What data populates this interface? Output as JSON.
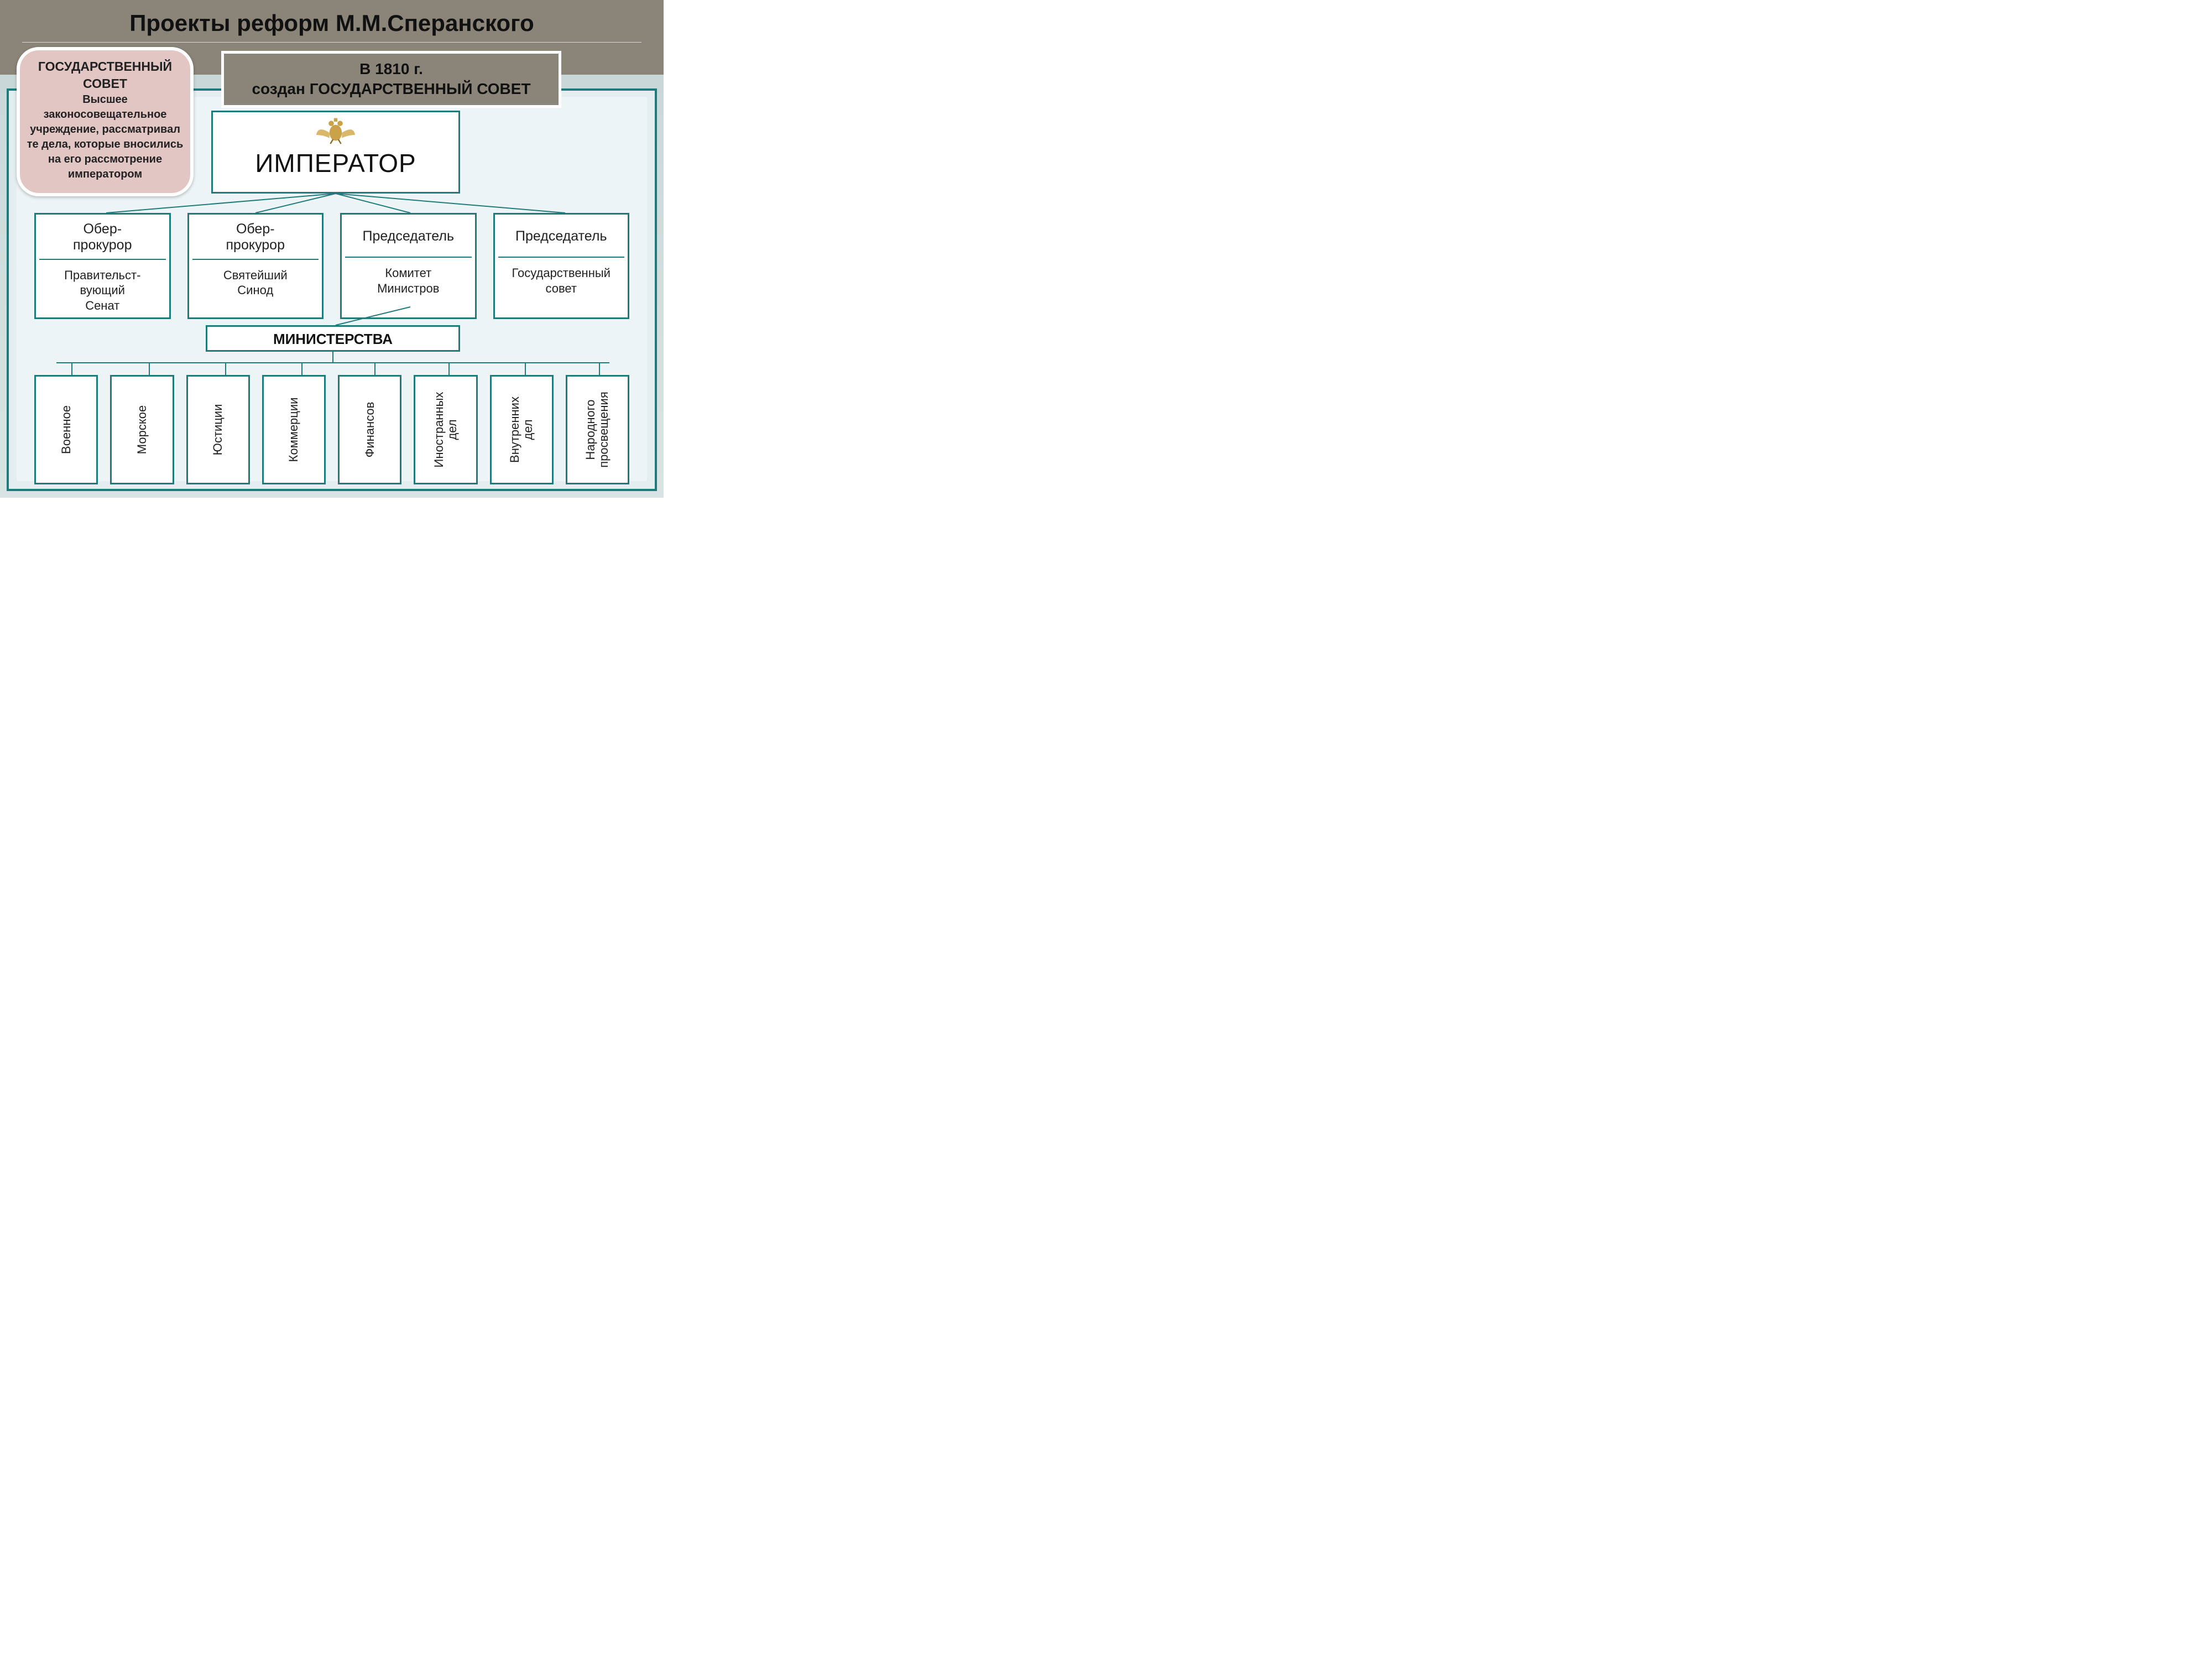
{
  "title": "Проекты реформ М.М.Сперанского",
  "callout": {
    "title": "ГОСУДАРСТВЕННЫЙ СОВЕТ",
    "body": "Высшее законосовещательное учреждение, рассматривал те дела, которые вносились на его рассмотрение императором"
  },
  "banner": {
    "line1": "В 1810 г.",
    "line2": "создан ГОСУДАРСТВЕННЫЙ СОВЕТ"
  },
  "emperor": "ИМПЕРАТОР",
  "institutions": [
    {
      "head": "Обер-\nпрокурор",
      "body": "Правительст-\nвующий\nСенат"
    },
    {
      "head": "Обер-\nпрокурор",
      "body": "Святейший\nСинод"
    },
    {
      "head": "Председатель",
      "body": "Комитет\nМинистров"
    },
    {
      "head": "Председатель",
      "body": "Государственный\nсовет"
    }
  ],
  "ministries_label": "МИНИСТЕРСТВА",
  "ministries": [
    "Военное",
    "Морское",
    "Юстиции",
    "Коммерции",
    "Финансов",
    "Иностранных\nдел",
    "Внутренних\nдел",
    "Народного\nпросвещения"
  ],
  "style": {
    "type": "tree",
    "border_color": "#1f7b7b",
    "box_bg": "#ffffff",
    "page_bg_top": "#8b8478",
    "page_bg_bottom": "#d8e4e4",
    "callout_bg": "#e1c6c4",
    "callout_border": "#ffffff",
    "banner_bg": "#8b8478",
    "banner_border": "#ffffff",
    "title_fontsize": 42,
    "emperor_fontsize": 46,
    "inst_head_fontsize": 25,
    "inst_body_fontsize": 22,
    "ministry_fontsize": 22,
    "emblem_colors": {
      "body": "#c9a24a",
      "wings": "#d9b86a",
      "shadow": "#8a6a20"
    }
  }
}
